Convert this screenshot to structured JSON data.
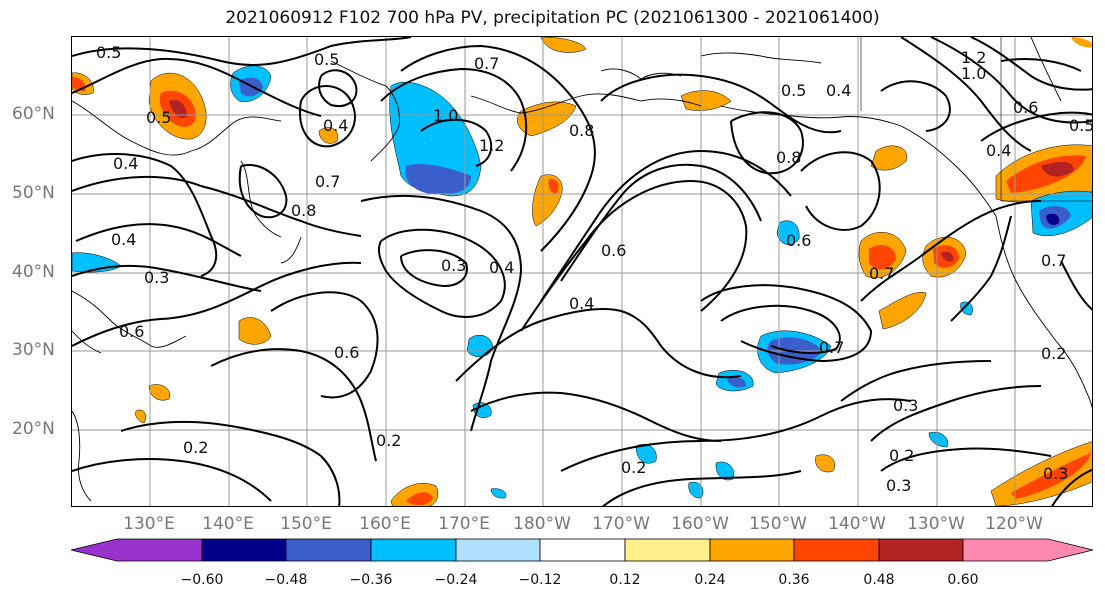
{
  "title": "2021060912 F102 700 hPa PV, precipitation PC (2021061300 - 2021061400)",
  "lat_labels": [
    "60°N",
    "50°N",
    "40°N",
    "30°N",
    "20°N"
  ],
  "lon_labels": [
    "130°E",
    "140°E",
    "150°E",
    "160°E",
    "170°E",
    "180°W",
    "170°W",
    "160°W",
    "150°W",
    "140°W",
    "130°W",
    "120°W"
  ],
  "colorbar": {
    "tick_labels": [
      "−0.60",
      "−0.48",
      "−0.36",
      "−0.24",
      "−0.12",
      "0.12",
      "0.24",
      "0.36",
      "0.48",
      "0.60"
    ],
    "colors": [
      "#9932cc",
      "#00008b",
      "#3a5fcd",
      "#00bfff",
      "#b0e2ff",
      "#ffffff",
      "#fff08c",
      "#ffa500",
      "#ff4500",
      "#b22222",
      "#ff88b0"
    ]
  },
  "contour_labels": [
    "0.5",
    "0.5",
    "0.7",
    "1.2",
    "1.0",
    "0.6",
    "0.5",
    "0.4",
    "0.5",
    "0.4",
    "1.0",
    "1.2",
    "0.8",
    "0.4",
    "0.7",
    "0.8",
    "0.8",
    "0.5",
    "0.4",
    "0.4",
    "0.3",
    "0.3",
    "0.4",
    "0.6",
    "0.6",
    "0.6",
    "0.4",
    "0.6",
    "0.7",
    "0.7",
    "0.7",
    "0.2",
    "0.2",
    "0.2",
    "0.3",
    "0.2",
    "0.3",
    "0.3",
    "0.2"
  ],
  "colors": {
    "contour": "#000000",
    "grid": "#999999",
    "coast": "#000000",
    "axis_text": "#777777"
  }
}
